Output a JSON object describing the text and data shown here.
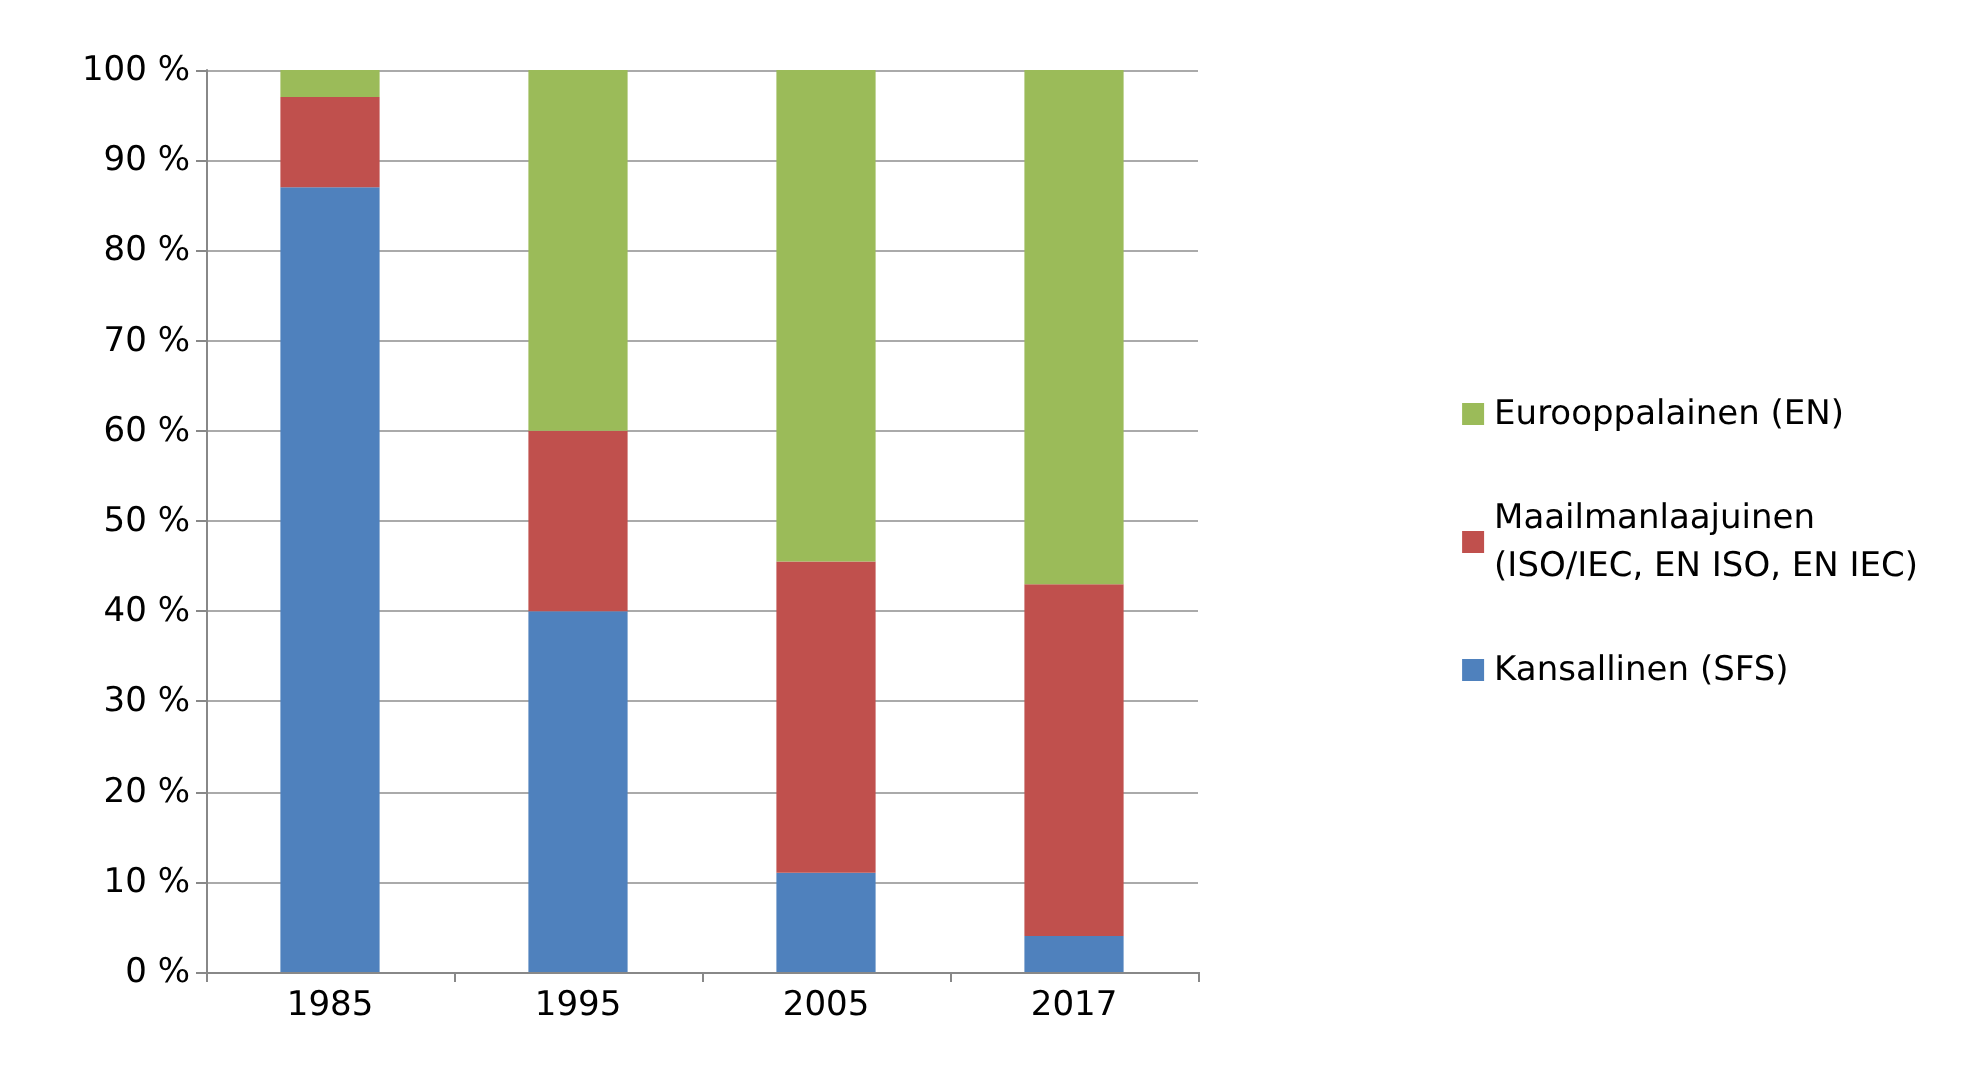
{
  "chart_data": {
    "type": "bar",
    "stacked": true,
    "categories": [
      "1985",
      "1995",
      "2005",
      "2017"
    ],
    "series": [
      {
        "name": "Kansallinen (SFS)",
        "color": "#4f81bd",
        "values": [
          87,
          40,
          11,
          4
        ]
      },
      {
        "name": "Maailmanlaajuinen\n(ISO/IEC, EN ISO, EN IEC)",
        "color": "#c0504d",
        "values": [
          10,
          20,
          34.5,
          39
        ]
      },
      {
        "name": "Eurooppalainen (EN)",
        "color": "#9bbb59",
        "values": [
          3,
          40,
          54.5,
          57
        ]
      }
    ],
    "ylim": [
      0,
      100
    ],
    "yticks": [
      {
        "value": 0,
        "label": "0 %"
      },
      {
        "value": 10,
        "label": "10 %"
      },
      {
        "value": 20,
        "label": "20 %"
      },
      {
        "value": 30,
        "label": "30 %"
      },
      {
        "value": 40,
        "label": "40 %"
      },
      {
        "value": 50,
        "label": "50 %"
      },
      {
        "value": 60,
        "label": "60 %"
      },
      {
        "value": 70,
        "label": "70 %"
      },
      {
        "value": 80,
        "label": "80 %"
      },
      {
        "value": 90,
        "label": "90 %"
      },
      {
        "value": 100,
        "label": "100 %"
      }
    ],
    "grid": "y",
    "legend": "right"
  }
}
